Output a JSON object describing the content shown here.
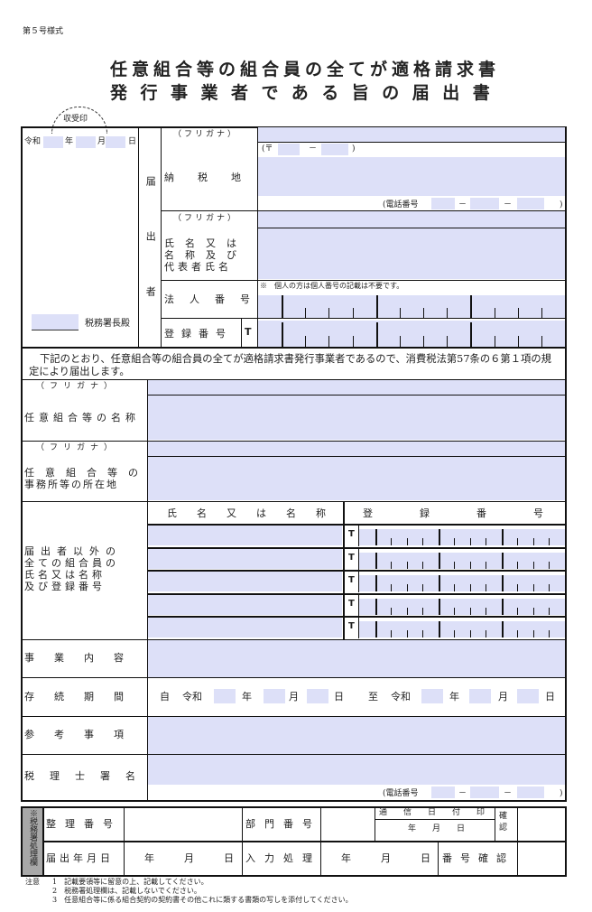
{
  "form_number": "第５号様式",
  "title_line1": "任意組合等の組合員の全てが適格請求書",
  "title_line2": "発行事業者である旨の届出書",
  "receipt_stamp": "収受印",
  "date": {
    "era": "令和",
    "year": "年",
    "month": "月",
    "day": "日"
  },
  "tax_office_suffix": "税務署長殿",
  "filer_label": "届出者",
  "furigana": "（フリガナ）",
  "tax_address_label": "納税地",
  "postal": {
    "prefix": "(〒",
    "dash": "－",
    "suffix": ")"
  },
  "phone": {
    "prefix": "(電話番号",
    "dash1": "－",
    "dash2": "－",
    "suffix": ")"
  },
  "name_label": [
    "氏名又は",
    "名称及び",
    "代表者氏名"
  ],
  "corp_number_label": "法人番号",
  "corp_number_note": "※　個人の方は個人番号の記載は不要です。",
  "reg_number_label": "登録番号",
  "t_prefix": "T",
  "statement": "下記のとおり、任意組合等の組合員の全てが適格請求書発行事業者であるので、消費税法第57条の６第１項の規定により届出します。",
  "union_name_label": "任意組合等の名称",
  "office_label": [
    "任意組合等の",
    "事務所等の所在地"
  ],
  "members_label": [
    "届出者以外の",
    "全ての組合員の",
    "氏名又は名称",
    "及び登録番号"
  ],
  "members_header": {
    "name": "氏名又は名称",
    "reg": "登録番号"
  },
  "member_rows": [
    "T",
    "T",
    "T",
    "T",
    "T"
  ],
  "business_label": "事業内容",
  "period_label": "存続期間",
  "period": {
    "from": "自",
    "era1": "令和",
    "y1": "年",
    "m1": "月",
    "d1": "日",
    "to": "至",
    "era2": "令和",
    "y2": "年",
    "m2": "月",
    "d2": "日"
  },
  "reference_label": "参考事項",
  "accountant_label": "税理士署名",
  "office_use": {
    "side": "※税務署処理欄",
    "ref_no": "整理番号",
    "dept_no": "部門番号",
    "stamp": "通信日付印",
    "stamp_date": "年　　月　　日",
    "confirm": "確認",
    "filed_date": "届出年月日",
    "date1": "年　　　月　　　日",
    "input": "入力処理",
    "date2": "年　　　月　　　日",
    "num_confirm": "番号確認"
  },
  "notes_label": "注意",
  "notes": [
    "1　記載要領等に留意の上、記載してください。",
    "2　税務署処理欄は、記載しないでください。",
    "3　任意組合等に係る組合契約の契約書その他これに類する書類の写しを添付してください。"
  ]
}
